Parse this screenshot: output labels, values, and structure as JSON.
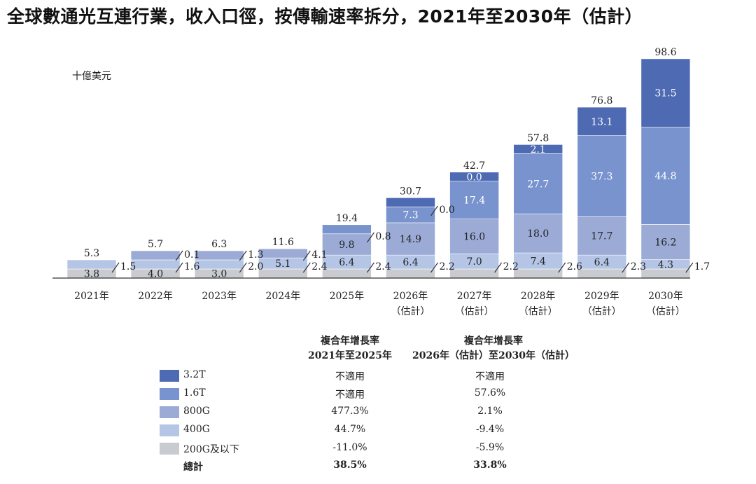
{
  "title": "全球數通光互連行業，收入口徑，按傳輸速率拆分，2021年至2030年（估計）",
  "chart_data": {
    "type": "bar",
    "stacked": true,
    "ylabel": "十億美元",
    "categories": [
      [
        "2021年",
        ""
      ],
      [
        "2022年",
        ""
      ],
      [
        "2023年",
        ""
      ],
      [
        "2024年",
        ""
      ],
      [
        "2025年",
        ""
      ],
      [
        "2026年",
        "（估計）"
      ],
      [
        "2027年",
        "（估計）"
      ],
      [
        "2028年",
        "（估計）"
      ],
      [
        "2029年",
        "（估計）"
      ],
      [
        "2030年",
        "（估計）"
      ]
    ],
    "totals": [
      5.3,
      5.7,
      6.3,
      11.6,
      19.4,
      30.7,
      42.7,
      57.8,
      76.8,
      98.6
    ],
    "series": [
      {
        "name": "200G及以下",
        "color": "#c9cbd0",
        "values": [
          3.8,
          4.0,
          3.0,
          2.4,
          2.4,
          2.2,
          2.2,
          2.6,
          2.3,
          1.7
        ]
      },
      {
        "name": "400G",
        "color": "#b4c5e6",
        "values": [
          1.5,
          1.6,
          2.0,
          5.1,
          6.4,
          6.4,
          7.0,
          7.4,
          6.4,
          4.3
        ]
      },
      {
        "name": "800G",
        "color": "#9babd6",
        "values": [
          0,
          0.1,
          1.3,
          4.1,
          9.8,
          14.9,
          16.0,
          18.0,
          17.7,
          16.2
        ]
      },
      {
        "name": "1.6T",
        "color": "#7893ce",
        "values": [
          0,
          0,
          0,
          0,
          0.8,
          7.3,
          17.4,
          27.7,
          37.3,
          44.8
        ]
      },
      {
        "name": "3.2T",
        "color": "#4e6ab3",
        "values": [
          0,
          0,
          0,
          0,
          0,
          0.0,
          0.0,
          2.1,
          13.1,
          31.5
        ]
      }
    ],
    "ylim": [
      0,
      100
    ],
    "grid": false,
    "legend_position": "bottom-left"
  },
  "cagr": {
    "header_1": [
      "複合年增長率",
      "2021年至2025年"
    ],
    "header_2": [
      "複合年增長率",
      "2026年（估計）至2030年（估計）"
    ],
    "rows": [
      {
        "label": "3.2T",
        "color": "#4e6ab3",
        "v1": "不適用",
        "v2": "不適用"
      },
      {
        "label": "1.6T",
        "color": "#7893ce",
        "v1": "不適用",
        "v2": "57.6%"
      },
      {
        "label": "800G",
        "color": "#9babd6",
        "v1": "477.3%",
        "v2": "2.1%"
      },
      {
        "label": "400G",
        "color": "#b4c5e6",
        "v1": "44.7%",
        "v2": "-9.4%"
      },
      {
        "label": "200G及以下",
        "color": "#c9cbd0",
        "v1": "-11.0%",
        "v2": "-5.9%"
      }
    ],
    "total": {
      "label": "總計",
      "v1": "38.5%",
      "v2": "33.8%"
    }
  }
}
